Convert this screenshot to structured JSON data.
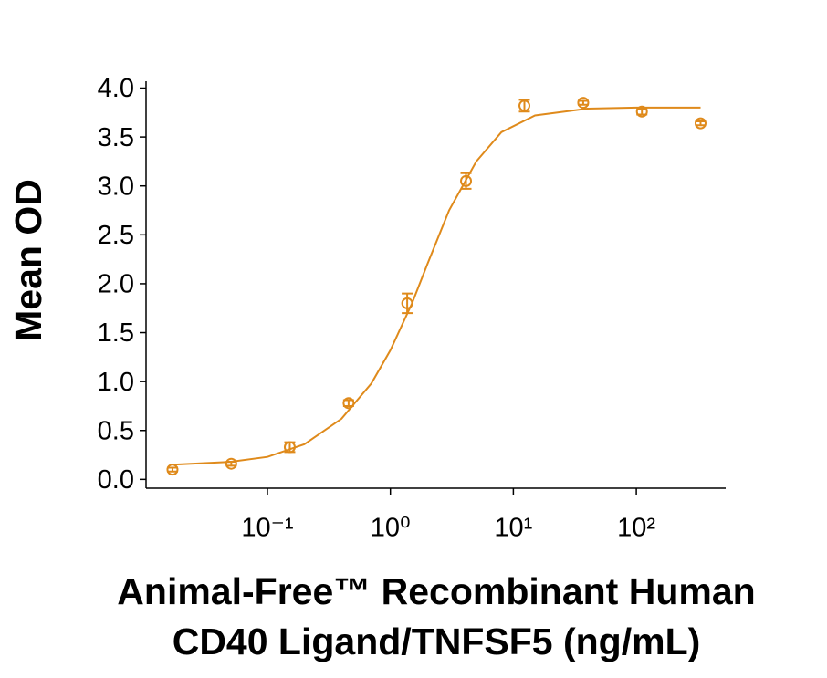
{
  "chart_data": {
    "type": "scatter",
    "xlabel": [
      "Animal-Free™ Recombinant Human",
      "CD40 Ligand/TNFSF5 (ng/mL)"
    ],
    "ylabel": "Mean OD",
    "log_x": true,
    "color": "#df8a1b",
    "x": [
      0.0169,
      0.0508,
      0.152,
      0.457,
      1.37,
      4.12,
      12.3,
      37,
      111,
      333
    ],
    "values": [
      0.1,
      0.16,
      0.33,
      0.78,
      1.8,
      3.05,
      3.82,
      3.85,
      3.76,
      3.64
    ],
    "errors": [
      0.02,
      0.02,
      0.05,
      0.03,
      0.1,
      0.08,
      0.06,
      0.02,
      0.03,
      0.02
    ],
    "fit": {
      "x": [
        0.0169,
        0.05,
        0.1,
        0.2,
        0.4,
        0.7,
        1,
        1.5,
        2,
        3,
        5,
        8,
        15,
        40,
        100,
        333
      ],
      "values": [
        0.15,
        0.18,
        0.23,
        0.36,
        0.62,
        0.98,
        1.32,
        1.8,
        2.2,
        2.75,
        3.25,
        3.55,
        3.72,
        3.79,
        3.8,
        3.8
      ]
    },
    "xlim": [
      0.0103,
      533
    ],
    "xticks": [
      {
        "value": 0.1,
        "label": "10⁻¹"
      },
      {
        "value": 1,
        "label": "10⁰"
      },
      {
        "value": 10,
        "label": "10¹"
      },
      {
        "value": 100,
        "label": "10²"
      }
    ],
    "ylim": [
      -0.09,
      4.07
    ],
    "yticks": [
      {
        "value": 0,
        "label": "0.0"
      },
      0.5,
      {
        "value": 1,
        "label": "1.0"
      },
      1.5,
      {
        "value": 2,
        "label": "2.0"
      },
      2.5,
      {
        "value": 3,
        "label": "3.0"
      },
      3.5,
      {
        "value": 4,
        "label": "4.0"
      }
    ]
  }
}
